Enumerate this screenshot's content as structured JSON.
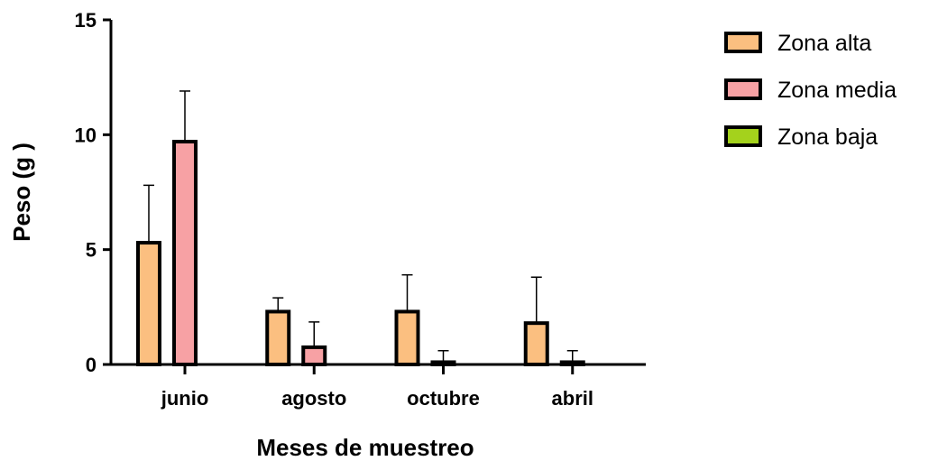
{
  "chart_data": {
    "type": "bar",
    "title": "",
    "xlabel": "Meses de muestreo",
    "ylabel": "Peso (g )",
    "ylim": [
      0,
      15
    ],
    "yticks": [
      0,
      5,
      10,
      15
    ],
    "grid": false,
    "legend_position": "top-right",
    "error_bars": true,
    "categories": [
      "junio",
      "agosto",
      "octubre",
      "abril"
    ],
    "series": [
      {
        "name": "Zona alta",
        "color": "#fbbf80",
        "values": [
          5.3,
          2.3,
          2.3,
          1.8
        ],
        "errors": [
          2.5,
          0.6,
          1.6,
          2.0
        ]
      },
      {
        "name": "Zona media",
        "color": "#f7a1a4",
        "values": [
          9.7,
          0.75,
          0.1,
          0.1
        ],
        "errors": [
          2.2,
          1.1,
          0.5,
          0.5
        ]
      },
      {
        "name": "Zona baja",
        "color": "#a4d21c",
        "values": [
          0,
          0,
          0,
          0
        ],
        "errors": [
          0,
          0,
          0,
          0
        ]
      }
    ]
  }
}
